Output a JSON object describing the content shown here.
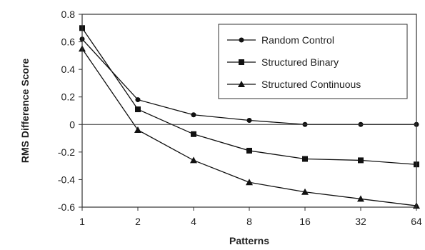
{
  "chart_data": {
    "type": "line",
    "title": "",
    "xlabel": "Patterns",
    "ylabel": "RMS Difference Score",
    "categories": [
      "1",
      "2",
      "4",
      "8",
      "16",
      "32",
      "64"
    ],
    "ylim": [
      -0.6,
      0.8
    ],
    "yticks": [
      "0.8",
      "0.6",
      "0.4",
      "0.2",
      "0",
      "-0.2",
      "-0.4",
      "-0.6"
    ],
    "ytick_values": [
      0.8,
      0.6,
      0.4,
      0.2,
      0,
      -0.2,
      -0.4,
      -0.6
    ],
    "grid": false,
    "zero_line": true,
    "legend_position": "top-right",
    "series": [
      {
        "name": "Random Control",
        "marker": "circle",
        "values": [
          0.62,
          0.18,
          0.07,
          0.03,
          0.0,
          0.0,
          0.0
        ]
      },
      {
        "name": "Structured Binary",
        "marker": "square",
        "values": [
          0.7,
          0.11,
          -0.07,
          -0.19,
          -0.25,
          -0.26,
          -0.29
        ]
      },
      {
        "name": "Structured Continuous",
        "marker": "triangle",
        "values": [
          0.55,
          -0.04,
          -0.26,
          -0.42,
          -0.49,
          -0.54,
          -0.59
        ]
      }
    ]
  }
}
